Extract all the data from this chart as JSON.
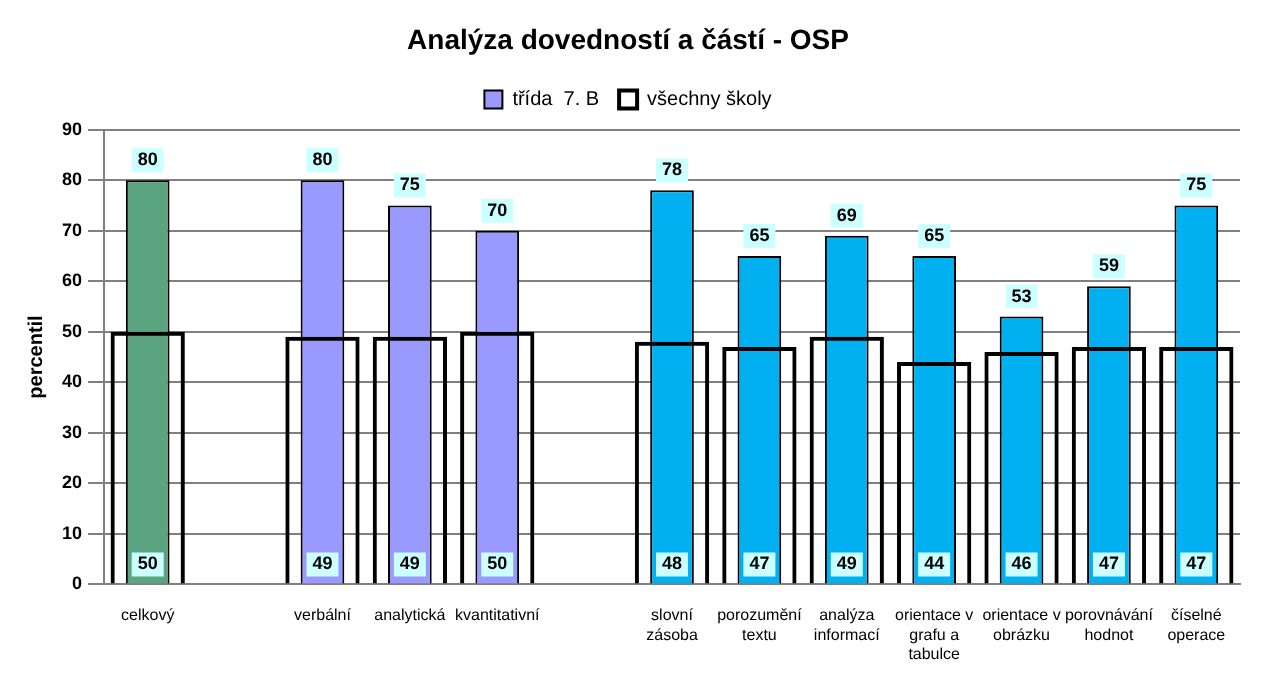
{
  "chart_data": {
    "type": "bar",
    "title": "Analýza dovedností a částí - OSP",
    "ylabel": "percentil",
    "categories": [
      "celkový",
      null,
      "verbální",
      "analytická",
      "kvantitativní",
      null,
      "slovní zásoba",
      "porozumění textu",
      "analýza informací",
      "orientace v grafu a tabulce",
      "orientace v obrázku",
      "porovnávání hodnot",
      "číselné operace"
    ],
    "series": [
      {
        "name": "třída  7. B",
        "color": "#9999ff",
        "colors": [
          "#5aa57f",
          "#9999ff",
          "#9999ff",
          "#9999ff",
          "#9999ff",
          "#9999ff",
          "#00b0f0",
          "#00b0f0",
          "#00b0f0",
          "#00b0f0",
          "#00b0f0",
          "#00b0f0",
          "#00b0f0"
        ],
        "values": [
          80,
          null,
          80,
          75,
          70,
          null,
          78,
          65,
          69,
          65,
          53,
          59,
          75
        ]
      },
      {
        "name": "všechny školy",
        "color": "#000000",
        "values": [
          50,
          null,
          49,
          49,
          50,
          null,
          48,
          47,
          49,
          44,
          46,
          47,
          47
        ]
      }
    ],
    "ylim": [
      0,
      90
    ],
    "yticks": [
      0,
      10,
      20,
      30,
      40,
      50,
      60,
      70,
      80,
      90
    ],
    "grid": "y",
    "legend": "top",
    "data_labels": true
  }
}
